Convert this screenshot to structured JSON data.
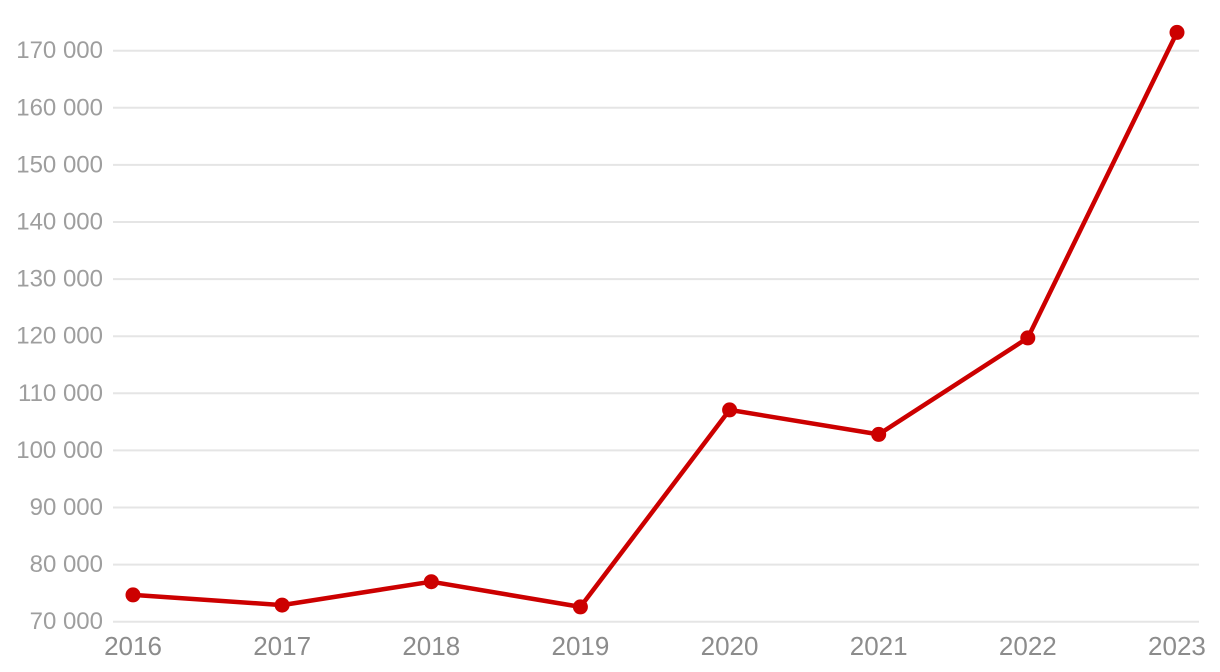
{
  "chart": {
    "accent_color": "#cc0000",
    "gridline_color": "#e5e5e5",
    "y_label_color": "#9e9e9e",
    "x_label_color": "#8c8c8c",
    "background_color": "#ffffff"
  },
  "chart_data": {
    "type": "line",
    "title": "",
    "xlabel": "",
    "ylabel": "",
    "categories": [
      "2016",
      "2017",
      "2018",
      "2019",
      "2020",
      "2021",
      "2022",
      "2023"
    ],
    "series": [
      {
        "name": "value",
        "values": [
          74700,
          72900,
          77000,
          72600,
          107100,
          102800,
          119700,
          173200
        ]
      }
    ],
    "ylim": [
      70000,
      176500
    ],
    "yticks": [
      70000,
      80000,
      90000,
      100000,
      110000,
      120000,
      130000,
      140000,
      150000,
      160000,
      170000
    ],
    "ytick_labels": [
      "70 000",
      "80 000",
      "90 000",
      "100 000",
      "110 000",
      "120 000",
      "130 000",
      "140 000",
      "150 000",
      "160 000",
      "170 000"
    ],
    "grid": true,
    "legend": false,
    "marker": "circle",
    "line_width": 4.5,
    "marker_radius": 7.5
  }
}
